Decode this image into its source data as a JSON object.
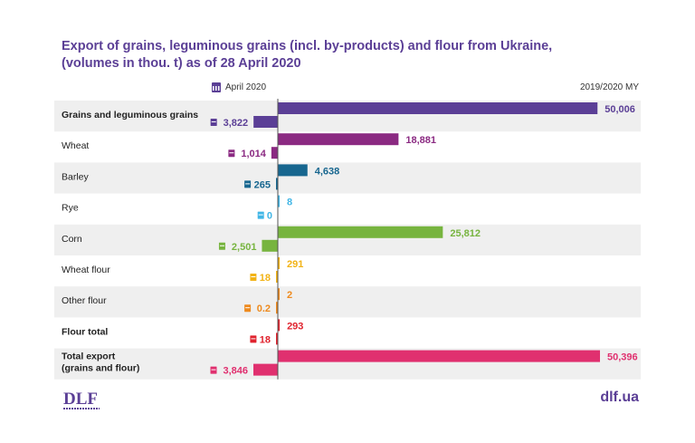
{
  "title_line1": "Export of grains, leguminous grains (incl. by-products) and flour from Ukraine,",
  "title_line2": "(volumes in thou. t) as of 28 April 2020",
  "legend_left": "April 2020",
  "legend_right": "2019/2020 MY",
  "logo_text": "DLF",
  "site_text": "dlf.ua",
  "colors": {
    "title": "#5b3f96",
    "stripe": "#efefef",
    "axis": "#555555"
  },
  "chart_data": {
    "type": "bar",
    "orientation": "horizontal-diverging",
    "categories": [
      "Grains and leguminous grains",
      "Wheat",
      "Barley",
      "Rye",
      "Corn",
      "Wheat flour",
      "Other flour",
      "Flour total",
      "Total export (grains and flour)"
    ],
    "bold_categories": [
      true,
      false,
      false,
      false,
      false,
      false,
      false,
      true,
      true
    ],
    "series": [
      {
        "name": "2019/2020 MY",
        "values": [
          50006,
          18881,
          4638,
          8,
          25812,
          291,
          2,
          293,
          50396
        ],
        "labels": [
          "50,006",
          "18,881",
          "4,638",
          "8",
          "25,812",
          "291",
          "2",
          "293",
          "50,396"
        ]
      },
      {
        "name": "April 2020",
        "values": [
          3822,
          1014,
          265,
          0,
          2501,
          18,
          0.2,
          18,
          3846
        ],
        "labels": [
          "3,822",
          "1,014",
          "265",
          "0",
          "2,501",
          "18",
          "0.2",
          "18",
          "3,846"
        ]
      }
    ],
    "row_colors": [
      "#5b3f96",
      "#8b2a82",
      "#17668f",
      "#41b6e6",
      "#77b43f",
      "#f2b316",
      "#ee8a1e",
      "#e0232e",
      "#e0306f"
    ],
    "label_colors": [
      "#5b3f96",
      "#8b2a82",
      "#17668f",
      "#41b6e6",
      "#77b43f",
      "#f2b316",
      "#ee8a1e",
      "#e0232e",
      "#e0306f"
    ],
    "xlim_right": [
      0,
      50396
    ],
    "xlim_left": [
      0,
      3846
    ]
  }
}
